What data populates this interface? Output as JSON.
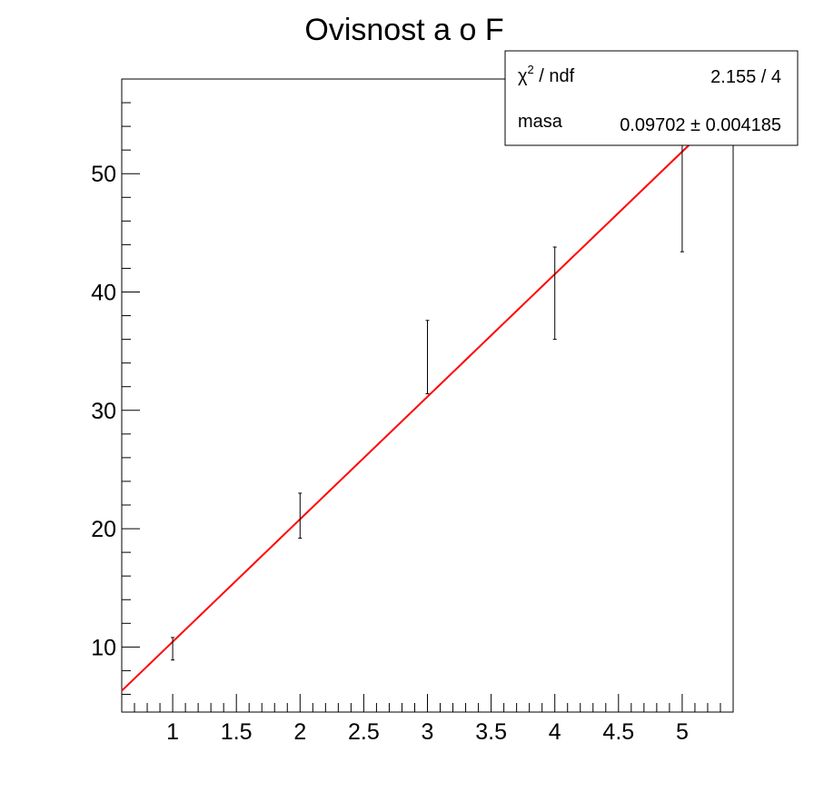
{
  "chart_data": {
    "type": "scatter",
    "title": "Ovisnost a o F",
    "xlabel": "",
    "ylabel": "",
    "xlim": [
      0.6,
      5.4
    ],
    "ylim": [
      4.5,
      58
    ],
    "x_ticks": [
      "1",
      "1.5",
      "2",
      "2.5",
      "3",
      "3.5",
      "4",
      "4.5",
      "5"
    ],
    "y_ticks": [
      "10",
      "20",
      "30",
      "40",
      "50"
    ],
    "grid": false,
    "points": [
      {
        "x": 1,
        "y": 9.8,
        "y_low": 8.9,
        "y_high": 10.8
      },
      {
        "x": 2,
        "y": 21.1,
        "y_low": 19.2,
        "y_high": 23.0
      },
      {
        "x": 3,
        "y": 34.5,
        "y_low": 31.4,
        "y_high": 37.6
      },
      {
        "x": 4,
        "y": 39.9,
        "y_low": 36.0,
        "y_high": 43.8
      },
      {
        "x": 5,
        "y": 49.6,
        "y_low": 43.4,
        "y_high": 55.8
      }
    ],
    "fit": {
      "x_start": 0.6,
      "y_start": 6.3,
      "x_end": 5.1,
      "y_end": 52.9,
      "color": "#ff0000"
    },
    "stats_box": {
      "position": "top-right",
      "rows": [
        {
          "label_main": "χ",
          "label_sup": "2",
          "label_rest": " / ndf",
          "value": "2.155 / 4"
        },
        {
          "label_main": "masa",
          "label_sup": "",
          "label_rest": "",
          "value": "0.09702 ± 0.004185"
        }
      ]
    }
  }
}
